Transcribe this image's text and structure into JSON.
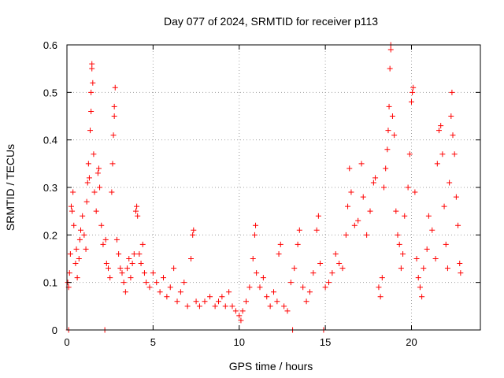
{
  "chart_data": {
    "type": "scatter",
    "title": "Day 077 of 2024, SRMTID for receiver p113",
    "xlabel": "GPS time / hours",
    "ylabel": "SRMTID / TECUs",
    "xlim": [
      0,
      24
    ],
    "ylim": [
      0,
      0.6
    ],
    "x_ticks": [
      0,
      5,
      10,
      15,
      20
    ],
    "x_tick_labels": [
      "0",
      "5",
      "10",
      "15",
      "20"
    ],
    "y_ticks": [
      0,
      0.1,
      0.2,
      0.3,
      0.4,
      0.5,
      0.6
    ],
    "y_tick_labels": [
      "0",
      "0.1",
      "0.2",
      "0.3",
      "0.4",
      "0.5",
      "0.6"
    ],
    "grid": true,
    "marker": "+",
    "color": "#ff0000",
    "series": [
      {
        "name": "SRMTID",
        "points": [
          [
            0.05,
            0.1
          ],
          [
            0.1,
            0.09
          ],
          [
            0.1,
            0.0
          ],
          [
            0.15,
            0.12
          ],
          [
            0.2,
            0.16
          ],
          [
            0.25,
            0.26
          ],
          [
            0.3,
            0.25
          ],
          [
            0.35,
            0.29
          ],
          [
            0.4,
            0.22
          ],
          [
            0.5,
            0.14
          ],
          [
            0.55,
            0.17
          ],
          [
            0.6,
            0.11
          ],
          [
            0.7,
            0.15
          ],
          [
            0.75,
            0.19
          ],
          [
            0.8,
            0.21
          ],
          [
            0.9,
            0.24
          ],
          [
            1.0,
            0.2
          ],
          [
            1.1,
            0.17
          ],
          [
            1.15,
            0.27
          ],
          [
            1.2,
            0.31
          ],
          [
            1.25,
            0.35
          ],
          [
            1.3,
            0.32
          ],
          [
            1.35,
            0.42
          ],
          [
            1.4,
            0.46
          ],
          [
            1.4,
            0.5
          ],
          [
            1.45,
            0.55
          ],
          [
            1.45,
            0.56
          ],
          [
            1.5,
            0.52
          ],
          [
            1.55,
            0.37
          ],
          [
            1.6,
            0.29
          ],
          [
            1.7,
            0.25
          ],
          [
            1.8,
            0.33
          ],
          [
            1.85,
            0.34
          ],
          [
            1.9,
            0.3
          ],
          [
            2.0,
            0.22
          ],
          [
            2.1,
            0.18
          ],
          [
            2.2,
            0.0
          ],
          [
            2.25,
            0.19
          ],
          [
            2.3,
            0.14
          ],
          [
            2.4,
            0.13
          ],
          [
            2.5,
            0.11
          ],
          [
            2.6,
            0.29
          ],
          [
            2.65,
            0.35
          ],
          [
            2.7,
            0.41
          ],
          [
            2.75,
            0.45
          ],
          [
            2.75,
            0.47
          ],
          [
            2.8,
            0.51
          ],
          [
            2.9,
            0.19
          ],
          [
            3.0,
            0.16
          ],
          [
            3.1,
            0.13
          ],
          [
            3.2,
            0.12
          ],
          [
            3.3,
            0.1
          ],
          [
            3.4,
            0.08
          ],
          [
            3.5,
            0.13
          ],
          [
            3.6,
            0.15
          ],
          [
            3.7,
            0.11
          ],
          [
            3.8,
            0.14
          ],
          [
            3.9,
            0.16
          ],
          [
            4.0,
            0.25
          ],
          [
            4.05,
            0.26
          ],
          [
            4.1,
            0.24
          ],
          [
            4.2,
            0.16
          ],
          [
            4.3,
            0.14
          ],
          [
            4.4,
            0.18
          ],
          [
            4.5,
            0.12
          ],
          [
            4.6,
            0.1
          ],
          [
            4.8,
            0.09
          ],
          [
            5.0,
            0.12
          ],
          [
            5.2,
            0.1
          ],
          [
            5.4,
            0.08
          ],
          [
            5.6,
            0.11
          ],
          [
            5.8,
            0.07
          ],
          [
            6.0,
            0.09
          ],
          [
            6.2,
            0.13
          ],
          [
            6.4,
            0.06
          ],
          [
            6.6,
            0.08
          ],
          [
            6.8,
            0.1
          ],
          [
            7.0,
            0.05
          ],
          [
            7.2,
            0.15
          ],
          [
            7.3,
            0.2
          ],
          [
            7.35,
            0.21
          ],
          [
            7.5,
            0.06
          ],
          [
            7.7,
            0.05
          ],
          [
            8.0,
            0.06
          ],
          [
            8.3,
            0.07
          ],
          [
            8.6,
            0.05
          ],
          [
            8.8,
            0.06
          ],
          [
            9.0,
            0.07
          ],
          [
            9.2,
            0.05
          ],
          [
            9.4,
            0.08
          ],
          [
            9.6,
            0.05
          ],
          [
            9.8,
            0.04
          ],
          [
            10.0,
            0.03
          ],
          [
            10.1,
            0.02
          ],
          [
            10.2,
            0.04
          ],
          [
            10.4,
            0.06
          ],
          [
            10.6,
            0.09
          ],
          [
            10.8,
            0.15
          ],
          [
            10.9,
            0.2
          ],
          [
            10.95,
            0.22
          ],
          [
            11.0,
            0.12
          ],
          [
            11.2,
            0.09
          ],
          [
            11.4,
            0.11
          ],
          [
            11.6,
            0.07
          ],
          [
            11.8,
            0.05
          ],
          [
            12.0,
            0.08
          ],
          [
            12.2,
            0.06
          ],
          [
            12.3,
            0.16
          ],
          [
            12.4,
            0.18
          ],
          [
            12.6,
            0.05
          ],
          [
            12.8,
            0.04
          ],
          [
            13.0,
            0.1
          ],
          [
            13.1,
            0.0
          ],
          [
            13.2,
            0.13
          ],
          [
            13.4,
            0.18
          ],
          [
            13.5,
            0.21
          ],
          [
            13.7,
            0.09
          ],
          [
            13.9,
            0.06
          ],
          [
            14.1,
            0.08
          ],
          [
            14.3,
            0.12
          ],
          [
            14.5,
            0.21
          ],
          [
            14.6,
            0.24
          ],
          [
            14.7,
            0.14
          ],
          [
            14.9,
            0.0
          ],
          [
            15.0,
            0.09
          ],
          [
            15.2,
            0.1
          ],
          [
            15.4,
            0.12
          ],
          [
            15.6,
            0.16
          ],
          [
            15.8,
            0.14
          ],
          [
            16.0,
            0.13
          ],
          [
            16.2,
            0.2
          ],
          [
            16.3,
            0.26
          ],
          [
            16.4,
            0.34
          ],
          [
            16.5,
            0.29
          ],
          [
            16.7,
            0.22
          ],
          [
            16.9,
            0.23
          ],
          [
            17.1,
            0.35
          ],
          [
            17.2,
            0.28
          ],
          [
            17.4,
            0.2
          ],
          [
            17.6,
            0.25
          ],
          [
            17.8,
            0.31
          ],
          [
            17.9,
            0.32
          ],
          [
            18.1,
            0.09
          ],
          [
            18.2,
            0.07
          ],
          [
            18.3,
            0.11
          ],
          [
            18.4,
            0.3
          ],
          [
            18.5,
            0.34
          ],
          [
            18.6,
            0.38
          ],
          [
            18.65,
            0.42
          ],
          [
            18.7,
            0.47
          ],
          [
            18.75,
            0.55
          ],
          [
            18.8,
            0.59
          ],
          [
            18.8,
            0.6
          ],
          [
            18.9,
            0.45
          ],
          [
            19.0,
            0.41
          ],
          [
            19.1,
            0.25
          ],
          [
            19.2,
            0.2
          ],
          [
            19.3,
            0.18
          ],
          [
            19.4,
            0.13
          ],
          [
            19.5,
            0.16
          ],
          [
            19.6,
            0.24
          ],
          [
            19.8,
            0.3
          ],
          [
            19.9,
            0.37
          ],
          [
            20.0,
            0.48
          ],
          [
            20.05,
            0.5
          ],
          [
            20.1,
            0.51
          ],
          [
            20.2,
            0.29
          ],
          [
            20.3,
            0.15
          ],
          [
            20.4,
            0.11
          ],
          [
            20.5,
            0.09
          ],
          [
            20.6,
            0.07
          ],
          [
            20.7,
            0.13
          ],
          [
            20.9,
            0.17
          ],
          [
            21.0,
            0.24
          ],
          [
            21.2,
            0.21
          ],
          [
            21.4,
            0.15
          ],
          [
            21.5,
            0.35
          ],
          [
            21.6,
            0.42
          ],
          [
            21.7,
            0.43
          ],
          [
            21.8,
            0.37
          ],
          [
            21.9,
            0.26
          ],
          [
            22.0,
            0.18
          ],
          [
            22.1,
            0.13
          ],
          [
            22.2,
            0.31
          ],
          [
            22.3,
            0.45
          ],
          [
            22.35,
            0.5
          ],
          [
            22.4,
            0.41
          ],
          [
            22.5,
            0.37
          ],
          [
            22.6,
            0.28
          ],
          [
            22.7,
            0.22
          ],
          [
            22.8,
            0.14
          ],
          [
            22.85,
            0.12
          ]
        ]
      }
    ]
  }
}
